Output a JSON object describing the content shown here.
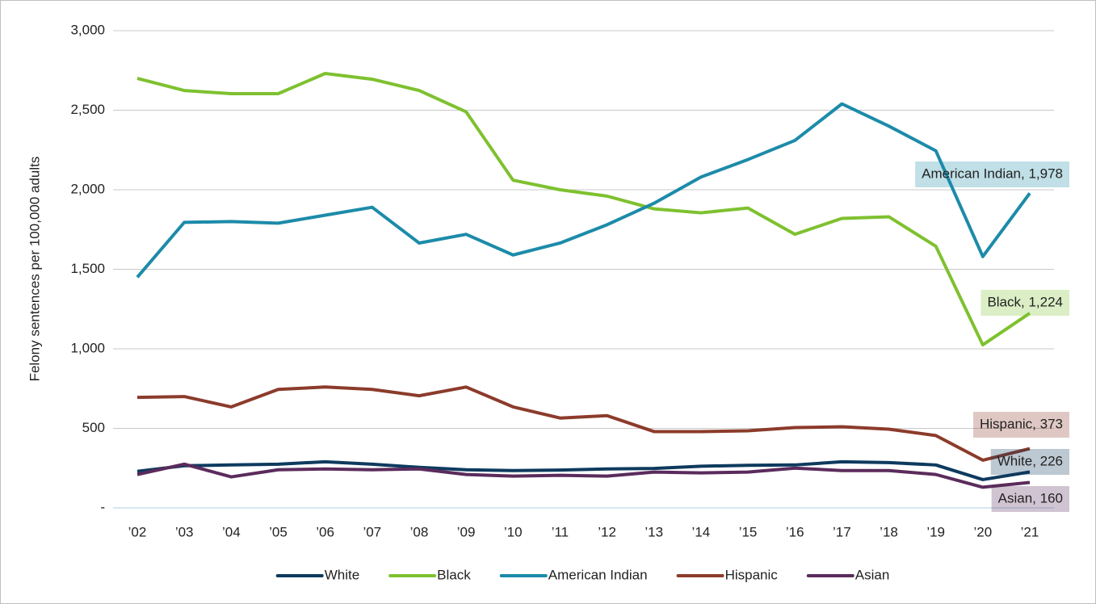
{
  "chart_data": {
    "type": "line",
    "y_label": "Felony sentences per 100,000 adults",
    "categories": [
      "’02",
      "’03",
      "’04",
      "’05",
      "’06",
      "’07",
      "’08",
      "’09",
      "’10",
      "’11",
      "’12",
      "’13",
      "’14",
      "’15",
      "’16",
      "’17",
      "’18",
      "’19",
      "’20",
      "’21"
    ],
    "ylim": [
      0,
      3000
    ],
    "yticks": [
      {
        "value": 0,
        "label": "-"
      },
      500,
      {
        "value": 1000,
        "label": "1,000"
      },
      {
        "value": 1500,
        "label": "1,500"
      },
      {
        "value": 2000,
        "label": "2,000"
      },
      {
        "value": 2500,
        "label": "2,500"
      },
      {
        "value": 3000,
        "label": "3,000"
      }
    ],
    "grid": true,
    "legend": "bottom",
    "series": [
      {
        "name": "White",
        "color": "#0e3a5e",
        "values": [
          230,
          265,
          270,
          275,
          290,
          275,
          255,
          240,
          235,
          238,
          245,
          248,
          262,
          268,
          270,
          290,
          285,
          270,
          178,
          226
        ],
        "value_labels": [
          null,
          null,
          null,
          null,
          null,
          null,
          null,
          null,
          null,
          null,
          null,
          null,
          null,
          null,
          null,
          null,
          null,
          null,
          null,
          "White,  226"
        ]
      },
      {
        "name": "Black",
        "color": "#7ec12f",
        "values": [
          2700,
          2624,
          2604,
          2604,
          2731,
          2695,
          2624,
          2490,
          2060,
          2000,
          1960,
          1880,
          1855,
          1885,
          1720,
          1820,
          1830,
          1645,
          1025,
          1224
        ],
        "value_labels": [
          null,
          null,
          null,
          null,
          null,
          null,
          null,
          null,
          null,
          null,
          null,
          null,
          null,
          null,
          null,
          null,
          null,
          null,
          null,
          "Black,  1,224"
        ]
      },
      {
        "name": "American Indian",
        "color": "#1c8ba9",
        "values": [
          1450,
          1795,
          1800,
          1790,
          1840,
          1890,
          1665,
          1720,
          1590,
          1665,
          1780,
          1915,
          2080,
          2190,
          2310,
          2540,
          2400,
          2245,
          1580,
          1978
        ],
        "value_labels": [
          null,
          null,
          null,
          null,
          null,
          null,
          null,
          null,
          null,
          null,
          null,
          null,
          null,
          null,
          null,
          null,
          null,
          null,
          null,
          "American Indian,  1,978"
        ]
      },
      {
        "name": "Hispanic",
        "color": "#8c3b2b",
        "values": [
          695,
          700,
          635,
          745,
          760,
          745,
          705,
          760,
          635,
          565,
          580,
          480,
          480,
          485,
          505,
          510,
          495,
          455,
          300,
          373
        ],
        "value_labels": [
          null,
          null,
          null,
          null,
          null,
          null,
          null,
          null,
          null,
          null,
          null,
          null,
          null,
          null,
          null,
          null,
          null,
          null,
          null,
          "Hispanic,  373"
        ]
      },
      {
        "name": "Asian",
        "color": "#5b2b5c",
        "values": [
          210,
          275,
          195,
          240,
          245,
          240,
          245,
          210,
          200,
          205,
          200,
          225,
          220,
          225,
          250,
          235,
          235,
          210,
          130,
          160
        ],
        "value_labels": [
          null,
          null,
          null,
          null,
          null,
          null,
          null,
          null,
          null,
          null,
          null,
          null,
          null,
          null,
          null,
          null,
          null,
          null,
          null,
          "Asian,  160"
        ]
      }
    ]
  }
}
